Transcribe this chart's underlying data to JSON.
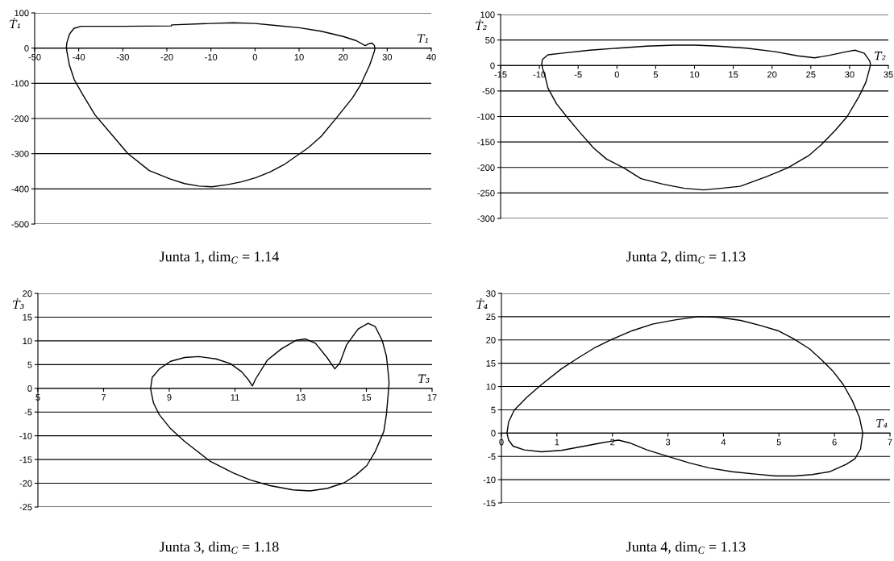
{
  "chart_data": [
    {
      "type": "line",
      "title": "Junta 1, dim$_{C}$ = 1.14",
      "xlabel": "T₁",
      "ylabel": "Ṫ₁",
      "xlim": [
        -50,
        40
      ],
      "xticks": [
        -50,
        -40,
        -30,
        -20,
        -10,
        0,
        10,
        20,
        30,
        40
      ],
      "ylim": [
        -500,
        100
      ],
      "yticks": [
        -500,
        -400,
        -300,
        -200,
        -100,
        0,
        100
      ],
      "grid": "y",
      "series": [
        {
          "color": "#000000",
          "x": [
            -42.8,
            -42.7,
            -42.1,
            -41.1,
            -39.5,
            -30,
            -19,
            -18.9,
            -10,
            -5,
            0,
            5,
            10,
            15,
            20,
            23,
            25,
            26,
            26.6,
            27.1,
            27.2,
            null,
            -42.8,
            -42.7,
            -42.1,
            -41,
            -39.2,
            -36.3,
            -32.7,
            -28.9,
            -24,
            -19.2,
            -16,
            -12.7,
            -9.8,
            -6.3,
            -3.1,
            0.2,
            3.4,
            6.6,
            9.8,
            12.1,
            15,
            18.5,
            22.1,
            23.9,
            26,
            27.1,
            27.2
          ],
          "values": [
            3,
            15,
            40,
            56,
            62,
            62,
            63,
            66,
            70,
            72,
            70,
            64,
            58,
            48,
            33,
            21,
            7,
            13,
            14,
            7,
            -1,
            null,
            3,
            -9,
            -49,
            -90,
            -130,
            -190,
            -243,
            -299,
            -348,
            -372,
            -385,
            -392,
            -394,
            -388,
            -380,
            -368,
            -352,
            -331,
            -303,
            -283,
            -251,
            -198,
            -142,
            -106,
            -49,
            -9,
            -1
          ]
        }
      ]
    },
    {
      "type": "line",
      "title": "Junta 2, dim$_{C}$ = 1.13",
      "xlabel": "T₂",
      "ylabel": "Ṫ₂",
      "xlim": [
        -15,
        35
      ],
      "xticks": [
        -15,
        -10,
        -5,
        0,
        5,
        10,
        15,
        20,
        25,
        30,
        35
      ],
      "ylim": [
        -300,
        100
      ],
      "yticks": [
        -300,
        -250,
        -200,
        -150,
        -100,
        -50,
        0,
        50,
        100
      ],
      "grid": "y",
      "series": [
        {
          "color": "#000000",
          "x": [
            -9.7,
            -9.6,
            -8.9,
            -7.2,
            -3.5,
            0.1,
            3.8,
            7.5,
            10.1,
            13,
            16.7,
            20.4,
            23.3,
            25.5,
            27.4,
            29.6,
            30.7,
            31.9,
            32.6,
            32.7,
            null,
            -9.7,
            -9.6,
            -9.2,
            -8.9,
            -7.8,
            -6.5,
            -4.8,
            -3,
            -1.3,
            0.9,
            3.1,
            6,
            8.7,
            11.2,
            13.4,
            15.9,
            19.3,
            22,
            24.8,
            26.3,
            28.1,
            29.7,
            31.2,
            32.1,
            32.6,
            32.7
          ],
          "values": [
            3,
            12,
            21,
            24,
            30,
            34,
            38,
            40,
            40,
            38,
            34,
            27,
            19,
            15,
            20,
            27,
            30,
            24,
            9,
            2,
            null,
            3,
            -5,
            -25,
            -44,
            -75,
            -100,
            -131,
            -162,
            -184,
            -201,
            -222,
            -233,
            -241,
            -244,
            -241,
            -237,
            -218,
            -201,
            -176,
            -156,
            -128,
            -100,
            -61,
            -33,
            -5,
            2
          ]
        }
      ]
    },
    {
      "type": "line",
      "title": "Junta 3, dim$_{C}$ = 1.18",
      "xlabel": "T₃",
      "ylabel": "Ṫ₃",
      "xlim": [
        5,
        17
      ],
      "xticks": [
        5,
        7,
        9,
        11,
        13,
        15,
        17
      ],
      "ylim": [
        -25,
        20
      ],
      "yticks": [
        -25,
        -20,
        -15,
        -10,
        -5,
        0,
        5,
        10,
        15,
        20
      ],
      "grid": "y",
      "series": [
        {
          "color": "#000000",
          "x": [
            8.43,
            8.48,
            8.7,
            9.04,
            9.47,
            9.9,
            10.42,
            10.86,
            11.2,
            11.42,
            11.53,
            11.63,
            11.98,
            12.41,
            12.85,
            13.15,
            13.45,
            13.8,
            14.04,
            14.19,
            14.4,
            14.75,
            15.05,
            15.27,
            15.48,
            15.61,
            15.67,
            15.69,
            null,
            8.43,
            8.52,
            8.69,
            9.04,
            9.47,
            10.25,
            10.94,
            11.46,
            12.07,
            12.76,
            13.28,
            13.8,
            14.32,
            14.66,
            15.01,
            15.27,
            15.53,
            15.61,
            15.67,
            15.69
          ],
          "values": [
            -0.1,
            2.3,
            4.1,
            5.7,
            6.5,
            6.7,
            6.2,
            5.2,
            3.5,
            1.7,
            0.5,
            2,
            5.9,
            8.3,
            10.1,
            10.4,
            9.5,
            6.5,
            4.1,
            5.3,
            9.2,
            12.5,
            13.7,
            13,
            10.1,
            6.8,
            2.9,
            1.1,
            null,
            -0.1,
            -3.1,
            -5.5,
            -8.5,
            -11.2,
            -15.4,
            -17.8,
            -19.3,
            -20.5,
            -21.4,
            -21.6,
            -21.1,
            -19.9,
            -18.4,
            -16.3,
            -13.3,
            -9.1,
            -5.5,
            -0.7,
            1.1
          ]
        }
      ]
    },
    {
      "type": "line",
      "title": "Junta 4, dim$_{C}$ = 1.13",
      "xlabel": "T₄",
      "ylabel": "Ṫ₄",
      "xlim": [
        0,
        7
      ],
      "xticks": [
        0,
        1,
        2,
        3,
        4,
        5,
        6,
        7
      ],
      "ylim": [
        -15,
        30
      ],
      "yticks": [
        -15,
        -10,
        -5,
        0,
        5,
        10,
        15,
        20,
        25,
        30
      ],
      "grid": "y",
      "series": [
        {
          "color": "#000000",
          "x": [
            0.1,
            0.13,
            0.23,
            0.46,
            0.72,
            1.08,
            1.39,
            1.69,
            2,
            2.36,
            2.72,
            3.13,
            3.54,
            3.9,
            4.31,
            4.67,
            4.98,
            5.26,
            5.55,
            5.78,
            5.98,
            6.16,
            6.32,
            6.45,
            6.51,
            null,
            0.1,
            0.13,
            0.21,
            0.41,
            0.72,
            1.08,
            1.49,
            1.8,
            2,
            2.11,
            2.31,
            2.62,
            3.03,
            3.39,
            3.75,
            4.16,
            4.57,
            4.93,
            5.29,
            5.6,
            5.91,
            6.21,
            6.37,
            6.47,
            6.51
          ],
          "values": [
            0,
            2.4,
            4.9,
            7.7,
            10.4,
            13.8,
            16.2,
            18.4,
            20.2,
            22,
            23.4,
            24.3,
            25,
            24.9,
            24.2,
            23.1,
            22,
            20.3,
            18.1,
            15.6,
            13.2,
            10.4,
            7,
            3.4,
            0,
            null,
            0,
            -1.5,
            -2.8,
            -3.6,
            -4,
            -3.7,
            -2.8,
            -2.1,
            -1.7,
            -1.5,
            -2.1,
            -3.6,
            -5.1,
            -6.4,
            -7.5,
            -8.3,
            -8.8,
            -9.2,
            -9.2,
            -8.9,
            -8.3,
            -6.7,
            -5.5,
            -3.4,
            0
          ]
        }
      ]
    }
  ]
}
